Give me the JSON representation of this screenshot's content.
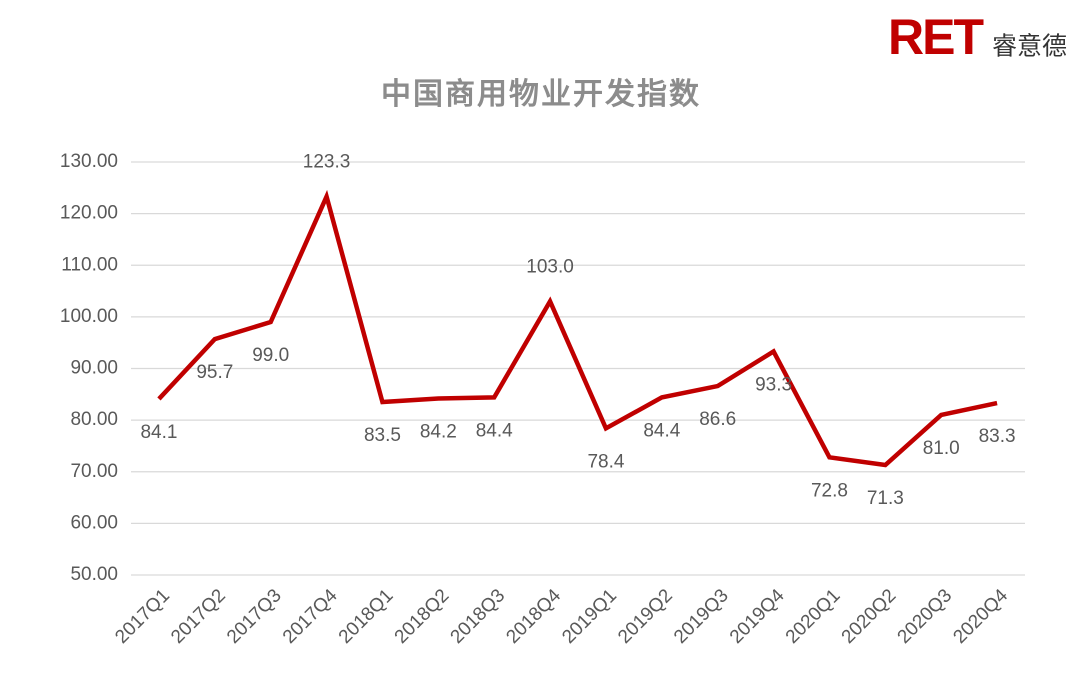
{
  "logo": {
    "mark": "RET",
    "name": "睿意德"
  },
  "chart_data": {
    "type": "line",
    "title": "中国商用物业开发指数",
    "categories": [
      "2017Q1",
      "2017Q2",
      "2017Q3",
      "2017Q4",
      "2018Q1",
      "2018Q2",
      "2018Q3",
      "2018Q4",
      "2019Q1",
      "2019Q2",
      "2019Q3",
      "2019Q4",
      "2020Q1",
      "2020Q2",
      "2020Q3",
      "2020Q4"
    ],
    "values": [
      84.1,
      95.7,
      99.0,
      123.3,
      83.5,
      84.2,
      84.4,
      103.0,
      78.4,
      84.4,
      86.6,
      93.3,
      72.8,
      71.3,
      81.0,
      83.3
    ],
    "value_labels": [
      "84.1",
      "95.7",
      "99.0",
      "123.3",
      "83.5",
      "84.2",
      "84.4",
      "103.0",
      "78.4",
      "84.4",
      "86.6",
      "93.3",
      "72.8",
      "71.3",
      "81.0",
      "83.3"
    ],
    "color": "#c00000",
    "ylim": [
      50,
      130
    ],
    "yticks": [
      {
        "value": 50,
        "label": "50.00"
      },
      {
        "value": 60,
        "label": "60.00"
      },
      {
        "value": 70,
        "label": "70.00"
      },
      {
        "value": 80,
        "label": "80.00"
      },
      {
        "value": 90,
        "label": "90.00"
      },
      {
        "value": 100,
        "label": "100.00"
      },
      {
        "value": 110,
        "label": "110.00"
      },
      {
        "value": 120,
        "label": "120.00"
      },
      {
        "value": 130,
        "label": "130.00"
      }
    ],
    "grid": true
  }
}
